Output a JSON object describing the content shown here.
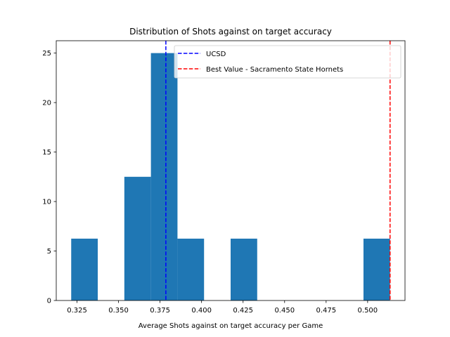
{
  "chart_data": {
    "type": "bar",
    "title": "Distribution of Shots against on target accuracy",
    "xlabel": "Average Shots against on target accuracy per Game",
    "ylabel": "",
    "xlim": [
      0.3125,
      0.5225
    ],
    "ylim": [
      0,
      26.25
    ],
    "grid": false,
    "x_ticks": [
      0.325,
      0.35,
      0.375,
      0.4,
      0.425,
      0.45,
      0.475,
      0.5
    ],
    "x_tick_labels": [
      "0.325",
      "0.350",
      "0.375",
      "0.400",
      "0.425",
      "0.450",
      "0.475",
      "0.500"
    ],
    "y_ticks": [
      0,
      5,
      10,
      15,
      20,
      25
    ],
    "y_tick_labels": [
      "0",
      "5",
      "10",
      "15",
      "20",
      "25"
    ],
    "bar_color": "#1f77b4",
    "bins": [
      {
        "x0": 0.3215,
        "x1": 0.3375,
        "value": 6.25
      },
      {
        "x0": 0.3375,
        "x1": 0.3535,
        "value": 0
      },
      {
        "x0": 0.3535,
        "x1": 0.3695,
        "value": 12.5
      },
      {
        "x0": 0.3695,
        "x1": 0.3855,
        "value": 25.0
      },
      {
        "x0": 0.3855,
        "x1": 0.4015,
        "value": 6.25
      },
      {
        "x0": 0.4015,
        "x1": 0.4175,
        "value": 0
      },
      {
        "x0": 0.4175,
        "x1": 0.4335,
        "value": 6.25
      },
      {
        "x0": 0.4335,
        "x1": 0.4495,
        "value": 0
      },
      {
        "x0": 0.4495,
        "x1": 0.4655,
        "value": 0
      },
      {
        "x0": 0.4655,
        "x1": 0.4815,
        "value": 0
      },
      {
        "x0": 0.4815,
        "x1": 0.4975,
        "value": 0
      },
      {
        "x0": 0.4975,
        "x1": 0.5135,
        "value": 6.25
      }
    ],
    "reference_lines": [
      {
        "name": "UCSD",
        "x": 0.3785,
        "color": "#0000ff",
        "style": "dashed"
      },
      {
        "name": "Best Value - Sacramento State Hornets",
        "x": 0.5135,
        "color": "#ff0000",
        "style": "dashed"
      }
    ],
    "legend_position": "top-right"
  }
}
